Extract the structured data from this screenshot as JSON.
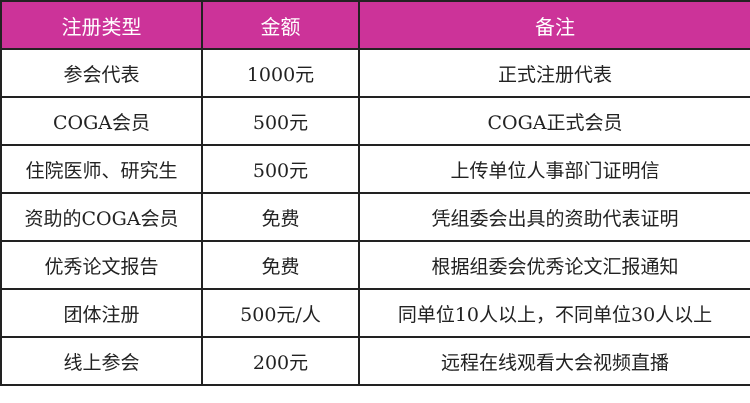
{
  "colors": {
    "header_bg": "#cc3399",
    "header_text": "#ffffff"
  },
  "headers": [
    "注册类型",
    "金额",
    "备注"
  ],
  "rows": [
    [
      "参会代表",
      "1000元",
      "正式注册代表"
    ],
    [
      "COGA会员",
      "500元",
      "COGA正式会员"
    ],
    [
      "住院医师、研究生",
      "500元",
      "上传单位人事部门证明信"
    ],
    [
      "资助的COGA会员",
      "免费",
      "凭组委会出具的资助代表证明"
    ],
    [
      "优秀论文报告",
      "免费",
      "根据组委会优秀论文汇报通知"
    ],
    [
      "团体注册",
      "500元/人",
      "同单位10人以上，不同单位30人以上"
    ],
    [
      "线上参会",
      "200元",
      "远程在线观看大会视频直播"
    ]
  ]
}
